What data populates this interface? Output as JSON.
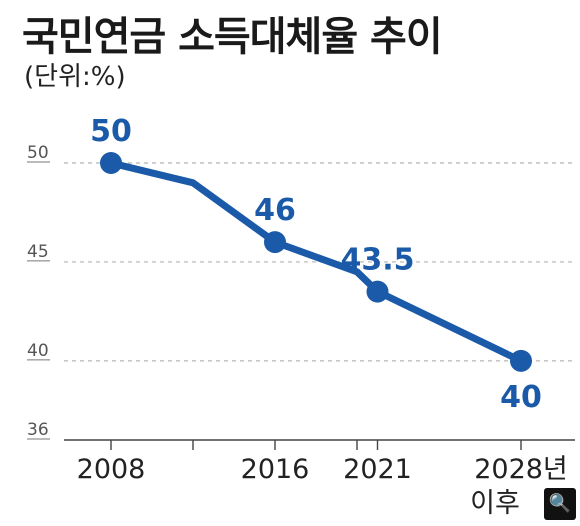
{
  "chart_data": {
    "type": "line",
    "title": "국민연금 소득대체율 추이",
    "subtitle": "(단위:%)",
    "ylim": [
      36,
      50
    ],
    "yticks": [
      "50",
      "45",
      "40",
      "36"
    ],
    "ytick_values": [
      50,
      45,
      40,
      36
    ],
    "grid": true,
    "series": [
      {
        "x": [
          2008,
          2012,
          2016,
          2020,
          2021,
          2028
        ],
        "values": [
          50,
          49,
          46,
          44.5,
          43.5,
          40
        ]
      }
    ],
    "markers": [
      {
        "label": "2008",
        "sub": "",
        "x": 2008,
        "value": 50,
        "text": "50",
        "label_pos": "above"
      },
      {
        "label": "2016",
        "sub": "",
        "x": 2016,
        "value": 46,
        "text": "46",
        "label_pos": "above"
      },
      {
        "label": "2021",
        "sub": "",
        "x": 2021,
        "value": 43.5,
        "text": "43.5",
        "label_pos": "above"
      },
      {
        "label": "2028년",
        "sub": "이후",
        "x": 2028,
        "value": 40,
        "text": "40",
        "label_pos": "below"
      }
    ],
    "colors": {
      "line": "#1a5aa8",
      "grid": "#b5b5b5",
      "axis": "#444444"
    }
  },
  "controls": {
    "zoom_icon": "magnifier-icon",
    "zoom_glyph": "🔍"
  }
}
